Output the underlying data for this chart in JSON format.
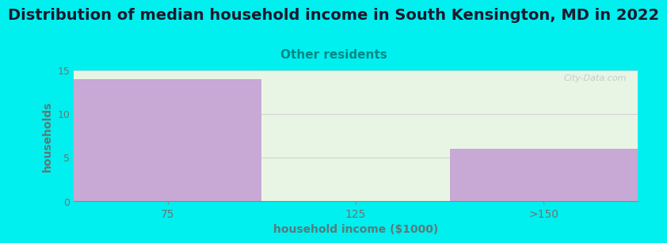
{
  "title": "Distribution of median household income in South Kensington, MD in 2022",
  "subtitle": "Other residents",
  "xlabel": "household income ($1000)",
  "ylabel": "households",
  "categories": [
    "75",
    "125",
    ">150"
  ],
  "values": [
    14,
    0,
    6
  ],
  "bar_colors": [
    "#c8a8d5",
    "#daecd5",
    "#c8a8d5"
  ],
  "background_color": "#00efef",
  "plot_bg_color": "#e8f5e5",
  "ylim": [
    0,
    15
  ],
  "yticks": [
    0,
    5,
    10,
    15
  ],
  "grid_color": "#d0d0d0",
  "title_fontsize": 14,
  "subtitle_color": "#008888",
  "subtitle_fontsize": 11,
  "ylabel_color": "#5a7a7a",
  "xlabel_color": "#5a7a7a",
  "tick_color": "#667777",
  "watermark": "City-Data.com",
  "bar_width": 1.0
}
